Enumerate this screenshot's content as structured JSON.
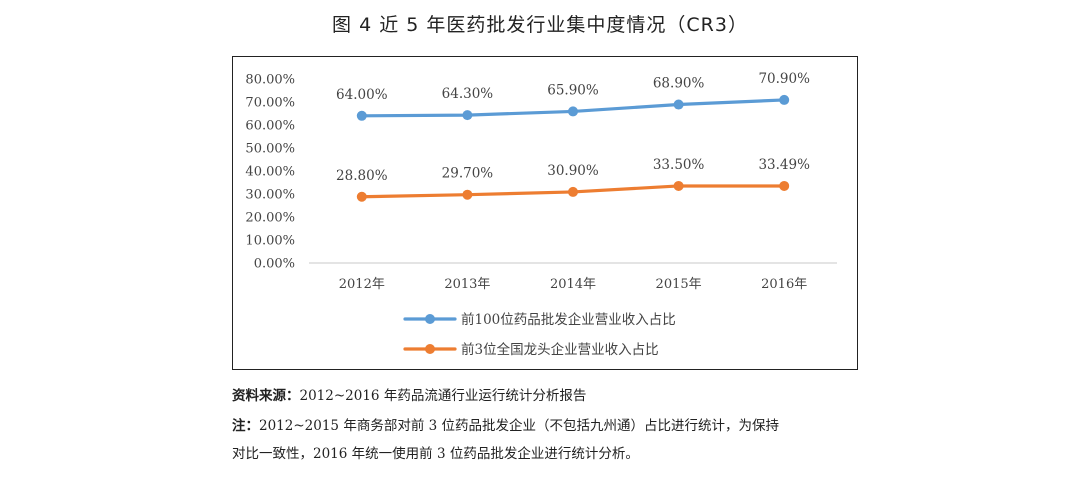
{
  "title": "图 4   近 5 年医药批发行业集中度情况（CR3）",
  "chart_data": {
    "type": "line",
    "categories": [
      "2012年",
      "2013年",
      "2014年",
      "2015年",
      "2016年"
    ],
    "series": [
      {
        "name": "前100位药品批发企业营业收入占比",
        "values": [
          64.0,
          64.3,
          65.9,
          68.9,
          70.9
        ],
        "labels": [
          "64.00%",
          "64.30%",
          "65.90%",
          "68.90%",
          "70.90%"
        ],
        "color": "#5b9bd5"
      },
      {
        "name": "前3位全国龙头企业营业收入占比",
        "values": [
          28.8,
          29.7,
          30.9,
          33.5,
          33.49
        ],
        "labels": [
          "28.80%",
          "29.70%",
          "30.90%",
          "33.50%",
          "33.49%"
        ],
        "color": "#ed7d31"
      }
    ],
    "ylim": [
      0,
      80
    ],
    "yticks": [
      0,
      10,
      20,
      30,
      40,
      50,
      60,
      70,
      80
    ],
    "ytick_labels": [
      "0.00%",
      "10.00%",
      "20.00%",
      "30.00%",
      "40.00%",
      "50.00%",
      "60.00%",
      "70.00%",
      "80.00%"
    ],
    "grid": false,
    "legend_position": "bottom"
  },
  "notes": {
    "source_label": "资料来源：",
    "source_text": "2012~2016 年药品流通行业运行统计分析报告",
    "note_label": "注：",
    "note_text_1": "2012~2015 年商务部对前 3 位药品批发企业（不包括九州通）占比进行统计，为保持",
    "note_text_2": "对比一致性，2016 年统一使用前 3 位药品批发企业进行统计分析。"
  }
}
